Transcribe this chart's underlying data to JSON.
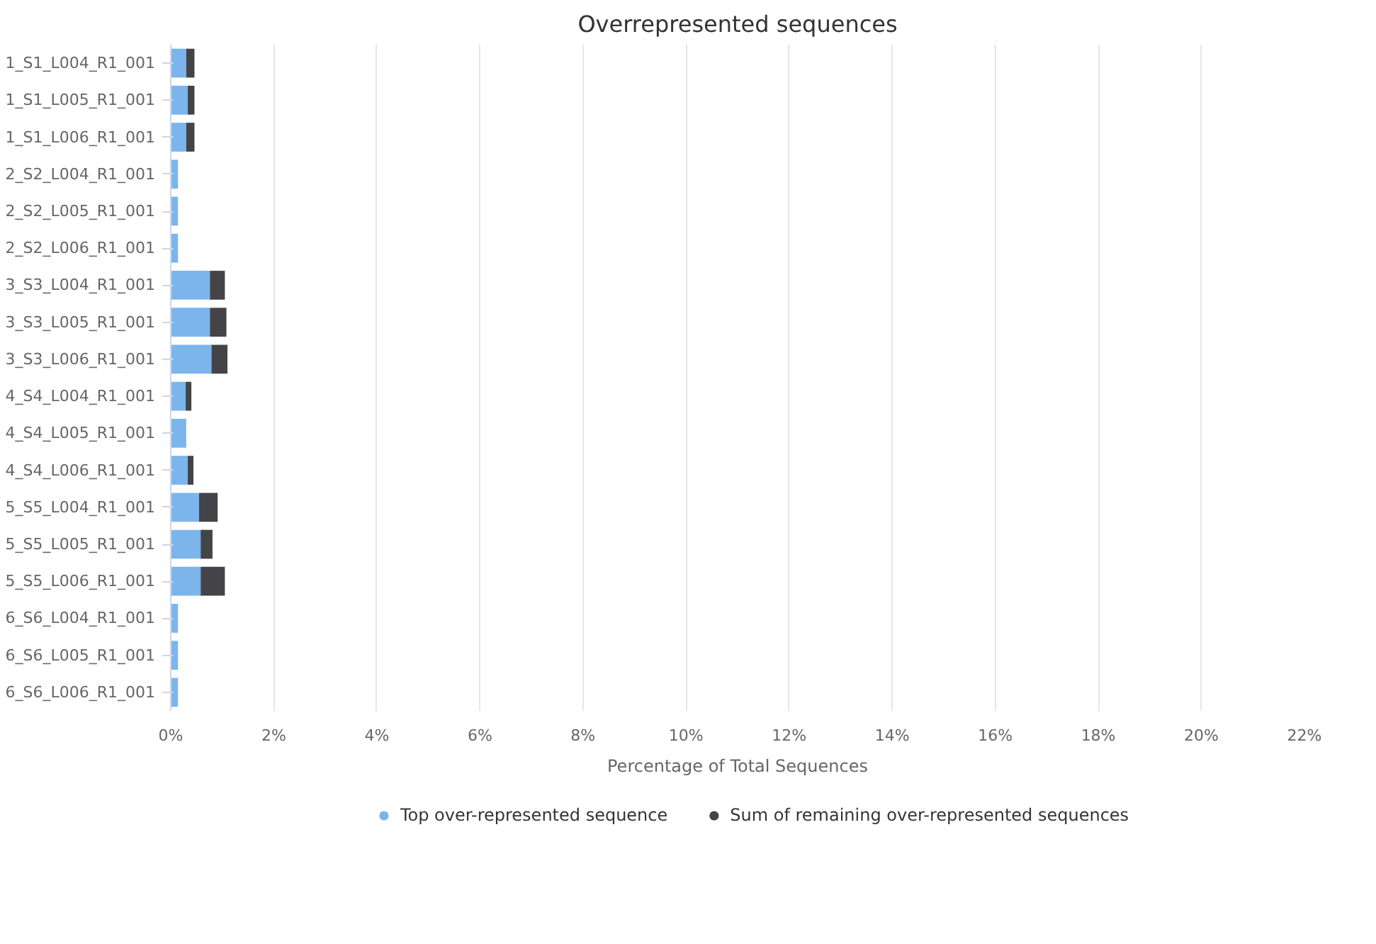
{
  "chart_data": {
    "type": "bar",
    "orientation": "horizontal",
    "stacked": true,
    "title": "Overrepresented sequences",
    "xlabel": "Percentage of Total Sequences",
    "categories": [
      "1_S1_L004_R1_001",
      "1_S1_L005_R1_001",
      "1_S1_L006_R1_001",
      "2_S2_L004_R1_001",
      "2_S2_L005_R1_001",
      "2_S2_L006_R1_001",
      "3_S3_L004_R1_001",
      "3_S3_L005_R1_001",
      "3_S3_L006_R1_001",
      "4_S4_L004_R1_001",
      "4_S4_L005_R1_001",
      "4_S4_L006_R1_001",
      "5_S5_L004_R1_001",
      "5_S5_L005_R1_001",
      "5_S5_L006_R1_001",
      "6_S6_L004_R1_001",
      "6_S6_L005_R1_001",
      "6_S6_L006_R1_001"
    ],
    "series": [
      {
        "name": "Top over-represented sequence",
        "color": "#7cb5ec",
        "values": [
          0.3,
          0.33,
          0.3,
          0.14,
          0.14,
          0.14,
          0.76,
          0.76,
          0.79,
          0.29,
          0.3,
          0.33,
          0.55,
          0.58,
          0.58,
          0.14,
          0.14,
          0.14
        ]
      },
      {
        "name": "Sum of remaining over-represented sequences",
        "color": "#434348",
        "values": [
          0.16,
          0.13,
          0.16,
          0,
          0,
          0,
          0.29,
          0.32,
          0.31,
          0.11,
          0,
          0.11,
          0.36,
          0.23,
          0.47,
          0,
          0,
          0
        ]
      }
    ],
    "xlim": [
      0,
      22
    ],
    "xticks": [
      {
        "value": 0,
        "label": "0%"
      },
      {
        "value": 2,
        "label": "2%"
      },
      {
        "value": 4,
        "label": "4%"
      },
      {
        "value": 6,
        "label": "6%"
      },
      {
        "value": 8,
        "label": "8%"
      },
      {
        "value": 10,
        "label": "10%"
      },
      {
        "value": 12,
        "label": "12%"
      },
      {
        "value": 14,
        "label": "14%"
      },
      {
        "value": 16,
        "label": "16%"
      },
      {
        "value": 18,
        "label": "18%"
      },
      {
        "value": 20,
        "label": "20%"
      },
      {
        "value": 22,
        "label": "22%"
      }
    ],
    "grid": "x",
    "legend": "bottom"
  }
}
